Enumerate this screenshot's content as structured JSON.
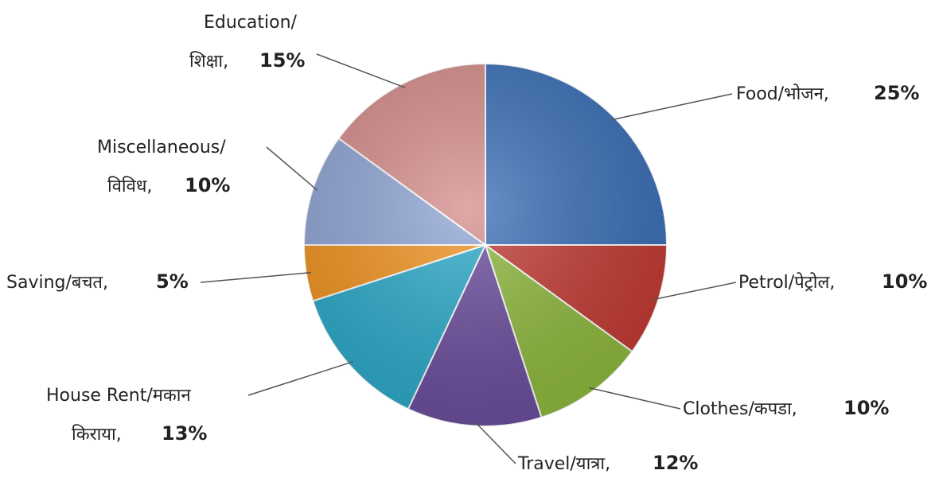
{
  "chart_data": {
    "type": "pie",
    "title": "",
    "legend": "none",
    "slices": [
      {
        "label": "Food/भोजन",
        "value": 25,
        "value_text": "25%",
        "color": "#3a6fb7"
      },
      {
        "label": "Petrol/पेट्रोल",
        "value": 10,
        "value_text": "10%",
        "color": "#c23a32"
      },
      {
        "label": "Clothes/कपडा",
        "value": 10,
        "value_text": "10%",
        "color": "#8db83c"
      },
      {
        "label": "Travel/यात्रा",
        "value": 12,
        "value_text": "12%",
        "color": "#6a4c9c"
      },
      {
        "label": "House Rent/मकान किराया",
        "value": 13,
        "value_text": "13%",
        "color": "#2aa8c8"
      },
      {
        "label": "Saving/बचत",
        "value": 5,
        "value_text": "5%",
        "color": "#f0921e"
      },
      {
        "label": "Miscellaneous/विविध",
        "value": 10,
        "value_text": "10%",
        "color": "#8ea4d4"
      },
      {
        "label": "Education/शिक्षा",
        "value": 15,
        "value_text": "15%",
        "color": "#d58d8b"
      }
    ],
    "label_texts": {
      "food": "Food/भोजन,",
      "petrol": "Petrol/पेट्रोल,",
      "clothes": "Clothes/कपडा,",
      "travel": "Travel/यात्रा,",
      "house_line1": "House Rent/मकान",
      "house_line2": "किराया,",
      "saving": "Saving/बचत,",
      "misc_line1": "Miscellaneous/",
      "misc_line2": "विविध,",
      "edu_line1": "Education/",
      "edu_line2": "शिक्षा,"
    }
  }
}
